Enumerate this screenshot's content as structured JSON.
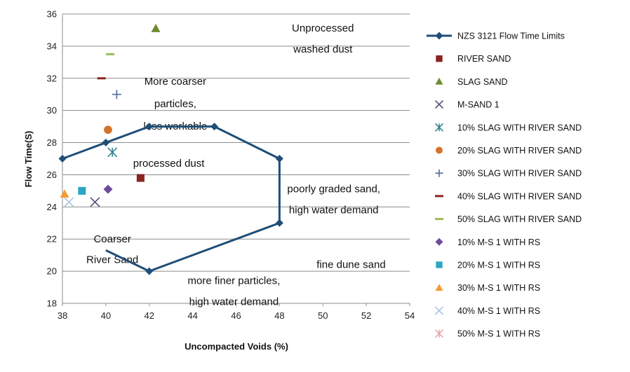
{
  "chart_data": {
    "type": "scatter",
    "title": "",
    "xlabel": "Uncompacted Voids (%)",
    "ylabel": "Flow Time(S)",
    "xlim": [
      38,
      54
    ],
    "ylim": [
      18,
      36
    ],
    "xticks": [
      "38",
      "40",
      "42",
      "44",
      "46",
      "48",
      "50",
      "52",
      "54"
    ],
    "yticks": [
      "18",
      "20",
      "22",
      "24",
      "26",
      "28",
      "30",
      "32",
      "34",
      "36"
    ],
    "grid": "horizontal",
    "legend_position": "right",
    "series": [
      {
        "name": "NZS 3121 Flow Time Limits",
        "marker": "diamond",
        "color": "#1F4E79",
        "line": true,
        "points": [
          [
            38,
            27
          ],
          [
            40,
            28
          ],
          [
            42,
            29
          ],
          [
            45,
            29
          ],
          [
            48,
            27
          ],
          [
            48,
            23
          ],
          [
            42,
            20
          ],
          [
            40,
            21.3
          ]
        ]
      },
      {
        "name": "RIVER SAND",
        "marker": "square",
        "color": "#8B2323",
        "points": [
          [
            41.6,
            25.8
          ]
        ]
      },
      {
        "name": "SLAG SAND",
        "marker": "triangle",
        "color": "#6E8B2F",
        "points": [
          [
            42.3,
            35.1
          ]
        ]
      },
      {
        "name": "M-SAND 1",
        "marker": "x",
        "color": "#5E4A7A",
        "points": [
          [
            39.5,
            24.3
          ]
        ]
      },
      {
        "name": "10% SLAG WITH RIVER SAND",
        "marker": "asterisk",
        "color": "#2E7F8E",
        "points": [
          [
            40.3,
            27.4
          ]
        ]
      },
      {
        "name": "20% SLAG WITH RIVER SAND",
        "marker": "circle",
        "color": "#D4742C",
        "points": [
          [
            40.1,
            28.8
          ]
        ]
      },
      {
        "name": "30% SLAG WITH RIVER SAND",
        "marker": "plus",
        "color": "#4F6E9B",
        "points": [
          [
            40.5,
            31.0
          ]
        ]
      },
      {
        "name": "40% SLAG WITH RIVER SAND",
        "marker": "dash",
        "color": "#8B2323",
        "points": [
          [
            39.8,
            32.0
          ]
        ]
      },
      {
        "name": "50% SLAG WITH RIVER SAND",
        "marker": "dash",
        "color": "#9BBB59",
        "points": [
          [
            40.2,
            33.5
          ]
        ]
      },
      {
        "name": "10% M-S 1 WITH RS",
        "marker": "diamond",
        "color": "#6F4B9A",
        "points": [
          [
            40.1,
            25.1
          ]
        ]
      },
      {
        "name": "20% M-S 1 WITH RS",
        "marker": "square",
        "color": "#2BA6C4",
        "points": [
          [
            38.9,
            25.0
          ]
        ]
      },
      {
        "name": "30% M-S 1 WITH RS",
        "marker": "triangle",
        "color": "#F59B2E",
        "points": [
          [
            38.1,
            24.8
          ]
        ]
      },
      {
        "name": "40% M-S 1 WITH RS",
        "marker": "x",
        "color": "#A9C4E6",
        "points": [
          [
            38.3,
            24.3
          ]
        ]
      },
      {
        "name": "50% M-S 1 WITH RS",
        "marker": "asterisk",
        "color": "#E8A0A0",
        "points": []
      }
    ],
    "annotations": [
      {
        "text": "Unprocessed",
        "x": 50.0,
        "y": 34.9
      },
      {
        "text": "washed dust",
        "x": 50.0,
        "y": 33.6
      },
      {
        "text": "More coarser",
        "x": 43.2,
        "y": 31.6
      },
      {
        "text": "particles,",
        "x": 43.2,
        "y": 30.2
      },
      {
        "text": "less workable",
        "x": 43.2,
        "y": 28.8
      },
      {
        "text": "processed dust",
        "x": 42.9,
        "y": 26.5
      },
      {
        "text": "poorly graded sand,",
        "x": 50.5,
        "y": 24.9
      },
      {
        "text": "high water demand",
        "x": 50.5,
        "y": 23.6
      },
      {
        "text": "Coarser",
        "x": 40.3,
        "y": 21.8
      },
      {
        "text": "River Sand",
        "x": 40.3,
        "y": 20.5
      },
      {
        "text": "fine dune sand",
        "x": 51.3,
        "y": 20.2
      },
      {
        "text": "more finer particles,",
        "x": 45.9,
        "y": 19.2
      },
      {
        "text": "high water demand",
        "x": 45.9,
        "y": 17.9
      }
    ]
  }
}
